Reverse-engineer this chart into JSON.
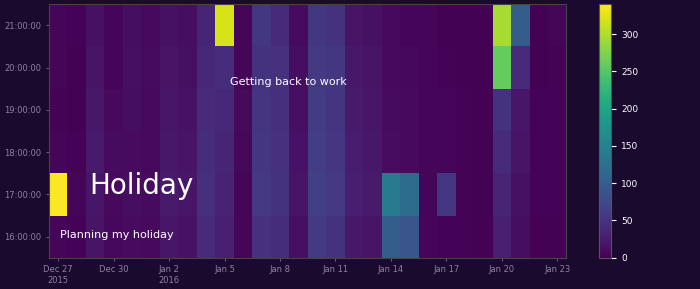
{
  "colormap": "viridis",
  "annotation_holiday": "Holiday",
  "annotation_planning": "Planning my holiday",
  "annotation_back": "Getting back to work",
  "holiday_fontsize": 20,
  "planning_fontsize": 8,
  "back_fontsize": 8,
  "vmax": 340,
  "vmin": 0,
  "n_days": 28,
  "n_hours": 6,
  "colorbar_ticks": [
    0,
    50,
    100,
    150,
    200,
    250,
    300
  ],
  "ytick_labels": [
    "21:00:00",
    "20:00:00",
    "19:00:00",
    "18:00:00",
    "17:00:00",
    "16:00:00"
  ],
  "xtick_positions": [
    0,
    3,
    6,
    9,
    12,
    15,
    18,
    21,
    24,
    27
  ],
  "xtick_labels": [
    "Dec 27\n2015",
    "Dec 30",
    "Jan 2\n2016",
    "Jan 5",
    "Jan 8",
    "Jan 11",
    "Jan 14",
    "Jan 17",
    "Jan 20",
    "Jan 23"
  ],
  "fig_bg": "#1a0a2e",
  "ax_bg": "#2d0a4e",
  "tick_color": "#9080a0",
  "heatmap": [
    [
      5,
      3,
      15,
      5,
      12,
      8,
      15,
      12,
      35,
      320,
      5,
      55,
      42,
      10,
      55,
      50,
      18,
      15,
      8,
      6,
      4,
      2,
      2,
      2,
      295,
      100,
      2,
      4
    ],
    [
      4,
      2,
      18,
      6,
      14,
      10,
      18,
      14,
      38,
      45,
      6,
      50,
      48,
      12,
      58,
      55,
      22,
      18,
      9,
      7,
      5,
      3,
      2,
      2,
      260,
      40,
      2,
      3
    ],
    [
      3,
      2,
      22,
      8,
      12,
      9,
      20,
      16,
      42,
      38,
      8,
      52,
      46,
      14,
      60,
      52,
      24,
      20,
      10,
      8,
      5,
      4,
      3,
      2,
      50,
      20,
      3,
      3
    ],
    [
      5,
      3,
      25,
      10,
      10,
      8,
      22,
      18,
      44,
      35,
      7,
      54,
      48,
      16,
      62,
      54,
      26,
      22,
      11,
      9,
      5,
      4,
      3,
      2,
      40,
      18,
      3,
      3
    ],
    [
      340,
      4,
      20,
      8,
      12,
      10,
      24,
      20,
      46,
      32,
      6,
      56,
      50,
      18,
      64,
      56,
      28,
      24,
      140,
      120,
      5,
      55,
      3,
      2,
      35,
      15,
      3,
      3
    ],
    [
      5,
      3,
      18,
      7,
      10,
      8,
      20,
      16,
      40,
      30,
      5,
      48,
      44,
      14,
      58,
      50,
      22,
      18,
      100,
      90,
      4,
      3,
      3,
      2,
      30,
      12,
      2,
      2
    ]
  ]
}
